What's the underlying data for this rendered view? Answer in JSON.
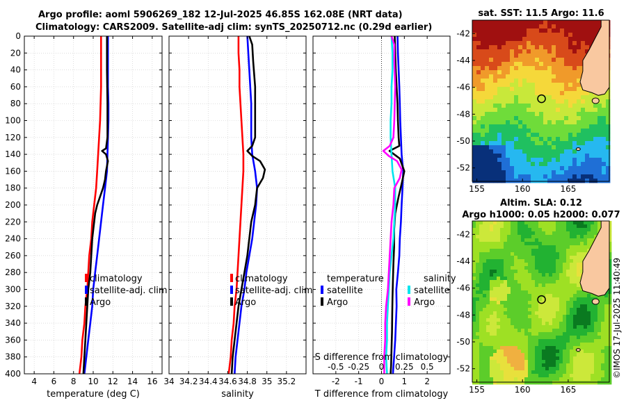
{
  "figure": {
    "title_line1": "Argo profile: aoml 5906269_182 12-Jul-2025 46.85S 162.08E (NRT data)",
    "title_line2": "Climatology: CARS2009. Satellite-adj clim: synTS_20250712.nc (0.29d earlier)",
    "credit": "©IMOS 17-Jul-2025 11:40:49"
  },
  "chart_data": [
    {
      "type": "line",
      "name": "temperature-profile",
      "xlabel": "temperature (deg C)",
      "ylabel": "",
      "xlim": [
        3,
        17
      ],
      "ylim": [
        400,
        0
      ],
      "xticks": [
        4,
        6,
        8,
        10,
        12,
        14,
        16
      ],
      "yticks": [
        0,
        20,
        40,
        60,
        80,
        100,
        120,
        140,
        160,
        180,
        200,
        220,
        240,
        260,
        280,
        300,
        320,
        340,
        360,
        380,
        400
      ],
      "grid": true,
      "legend": [
        "climatology",
        "satellite-adj. clim",
        "Argo"
      ],
      "series": [
        {
          "name": "climatology",
          "color": "#ff0000",
          "points": [
            [
              10.8,
              0
            ],
            [
              10.8,
              20
            ],
            [
              10.8,
              40
            ],
            [
              10.8,
              60
            ],
            [
              10.75,
              80
            ],
            [
              10.7,
              100
            ],
            [
              10.6,
              120
            ],
            [
              10.5,
              140
            ],
            [
              10.4,
              160
            ],
            [
              10.3,
              180
            ],
            [
              10.1,
              200
            ],
            [
              9.9,
              220
            ],
            [
              9.8,
              240
            ],
            [
              9.6,
              260
            ],
            [
              9.5,
              280
            ],
            [
              9.4,
              300
            ],
            [
              9.2,
              320
            ],
            [
              9.1,
              340
            ],
            [
              8.9,
              360
            ],
            [
              8.8,
              380
            ],
            [
              8.6,
              400
            ]
          ]
        },
        {
          "name": "satellite-adj. clim",
          "color": "#0000ff",
          "points": [
            [
              11.5,
              0
            ],
            [
              11.5,
              20
            ],
            [
              11.5,
              40
            ],
            [
              11.5,
              60
            ],
            [
              11.55,
              80
            ],
            [
              11.55,
              100
            ],
            [
              11.5,
              120
            ],
            [
              11.45,
              140
            ],
            [
              11.4,
              160
            ],
            [
              11.2,
              180
            ],
            [
              11.0,
              200
            ],
            [
              10.8,
              220
            ],
            [
              10.6,
              240
            ],
            [
              10.4,
              260
            ],
            [
              10.2,
              280
            ],
            [
              10.0,
              300
            ],
            [
              9.9,
              320
            ],
            [
              9.7,
              340
            ],
            [
              9.5,
              360
            ],
            [
              9.3,
              380
            ],
            [
              9.1,
              400
            ]
          ]
        },
        {
          "name": "Argo",
          "color": "#000000",
          "points": [
            [
              11.4,
              0
            ],
            [
              11.4,
              40
            ],
            [
              11.45,
              80
            ],
            [
              11.45,
              120
            ],
            [
              11.3,
              133
            ],
            [
              10.9,
              136
            ],
            [
              11.3,
              140
            ],
            [
              11.5,
              148
            ],
            [
              11.3,
              160
            ],
            [
              11.2,
              170
            ],
            [
              11.0,
              180
            ],
            [
              10.7,
              190
            ],
            [
              10.4,
              200
            ],
            [
              10.2,
              210
            ],
            [
              10.1,
              220
            ],
            [
              9.9,
              240
            ],
            [
              9.8,
              260
            ],
            [
              9.7,
              280
            ],
            [
              9.5,
              300
            ],
            [
              9.4,
              320
            ],
            [
              9.3,
              340
            ],
            [
              9.2,
              360
            ],
            [
              9.1,
              380
            ],
            [
              9.0,
              400
            ]
          ]
        }
      ]
    },
    {
      "type": "line",
      "name": "salinity-profile",
      "xlabel": "salinity",
      "xlim": [
        34,
        35.4
      ],
      "ylim": [
        400,
        0
      ],
      "xticks": [
        34,
        34.2,
        34.4,
        34.6,
        34.8,
        35,
        35.2
      ],
      "grid": true,
      "legend": [
        "climatology",
        "satellite-adj. clim",
        "Argo"
      ],
      "series": [
        {
          "name": "climatology",
          "color": "#ff0000",
          "points": [
            [
              34.71,
              0
            ],
            [
              34.71,
              20
            ],
            [
              34.72,
              40
            ],
            [
              34.72,
              60
            ],
            [
              34.73,
              80
            ],
            [
              34.74,
              100
            ],
            [
              34.75,
              120
            ],
            [
              34.76,
              140
            ],
            [
              34.76,
              160
            ],
            [
              34.75,
              180
            ],
            [
              34.74,
              200
            ],
            [
              34.73,
              220
            ],
            [
              34.72,
              240
            ],
            [
              34.71,
              260
            ],
            [
              34.7,
              280
            ],
            [
              34.69,
              300
            ],
            [
              34.67,
              320
            ],
            [
              34.66,
              340
            ],
            [
              34.64,
              360
            ],
            [
              34.63,
              380
            ],
            [
              34.61,
              400
            ]
          ]
        },
        {
          "name": "satellite-adj. clim",
          "color": "#0000ff",
          "points": [
            [
              34.8,
              0
            ],
            [
              34.81,
              20
            ],
            [
              34.82,
              40
            ],
            [
              34.83,
              60
            ],
            [
              34.84,
              80
            ],
            [
              34.84,
              100
            ],
            [
              34.84,
              120
            ],
            [
              34.85,
              140
            ],
            [
              34.88,
              160
            ],
            [
              34.9,
              180
            ],
            [
              34.89,
              200
            ],
            [
              34.87,
              220
            ],
            [
              34.85,
              240
            ],
            [
              34.82,
              260
            ],
            [
              34.79,
              280
            ],
            [
              34.77,
              300
            ],
            [
              34.74,
              320
            ],
            [
              34.72,
              340
            ],
            [
              34.7,
              360
            ],
            [
              34.68,
              380
            ],
            [
              34.67,
              400
            ]
          ]
        },
        {
          "name": "Argo",
          "color": "#000000",
          "points": [
            [
              34.82,
              0
            ],
            [
              34.85,
              10
            ],
            [
              34.86,
              30
            ],
            [
              34.88,
              60
            ],
            [
              34.88,
              100
            ],
            [
              34.88,
              120
            ],
            [
              34.85,
              130
            ],
            [
              34.8,
              136
            ],
            [
              34.85,
              142
            ],
            [
              34.93,
              148
            ],
            [
              34.98,
              158
            ],
            [
              34.96,
              168
            ],
            [
              34.9,
              180
            ],
            [
              34.88,
              200
            ],
            [
              34.84,
              220
            ],
            [
              34.82,
              240
            ],
            [
              34.8,
              260
            ],
            [
              34.77,
              280
            ],
            [
              34.74,
              300
            ],
            [
              34.71,
              320
            ],
            [
              34.69,
              340
            ],
            [
              34.67,
              360
            ],
            [
              34.65,
              380
            ],
            [
              34.64,
              400
            ]
          ]
        }
      ]
    },
    {
      "type": "line",
      "name": "difference-profile",
      "xlabel": "T difference from climatology",
      "top_axis_label": "S difference from climatology",
      "xlim": [
        -3,
        3
      ],
      "ylim": [
        400,
        0
      ],
      "xticks": [
        -2,
        -1,
        0,
        1,
        2
      ],
      "top_ticks": [
        -0.5,
        -0.25,
        0,
        0.25,
        0.5
      ],
      "top_tick_labels": [
        "-0.5",
        "-0.25",
        "0",
        "0.25",
        "0.5"
      ],
      "slim": [
        -0.75,
        0.75
      ],
      "grid": true,
      "legend_left_title": "temperature",
      "legend_right_title": "salinity",
      "legend": [
        "satellite",
        "Argo",
        "satellite",
        "Argo"
      ],
      "series": [
        {
          "name": "temperature satellite",
          "color": "#0000ff",
          "points": [
            [
              0.7,
              0
            ],
            [
              0.72,
              20
            ],
            [
              0.75,
              40
            ],
            [
              0.78,
              60
            ],
            [
              0.8,
              80
            ],
            [
              0.82,
              100
            ],
            [
              0.85,
              120
            ],
            [
              0.88,
              140
            ],
            [
              0.95,
              160
            ],
            [
              0.92,
              180
            ],
            [
              0.88,
              200
            ],
            [
              0.85,
              220
            ],
            [
              0.8,
              240
            ],
            [
              0.78,
              260
            ],
            [
              0.72,
              280
            ],
            [
              0.65,
              300
            ],
            [
              0.66,
              320
            ],
            [
              0.63,
              340
            ],
            [
              0.6,
              360
            ],
            [
              0.55,
              380
            ],
            [
              0.5,
              400
            ]
          ]
        },
        {
          "name": "temperature Argo",
          "color": "#000000",
          "points": [
            [
              0.58,
              0
            ],
            [
              0.6,
              20
            ],
            [
              0.62,
              40
            ],
            [
              0.66,
              60
            ],
            [
              0.7,
              80
            ],
            [
              0.72,
              100
            ],
            [
              0.75,
              120
            ],
            [
              0.78,
              130
            ],
            [
              0.35,
              136
            ],
            [
              0.8,
              145
            ],
            [
              1.0,
              160
            ],
            [
              0.88,
              175
            ],
            [
              0.75,
              190
            ],
            [
              0.6,
              210
            ],
            [
              0.55,
              230
            ],
            [
              0.55,
              250
            ],
            [
              0.52,
              270
            ],
            [
              0.5,
              290
            ],
            [
              0.48,
              310
            ],
            [
              0.47,
              330
            ],
            [
              0.46,
              350
            ],
            [
              0.44,
              370
            ],
            [
              0.42,
              390
            ],
            [
              0.4,
              400
            ]
          ]
        },
        {
          "name": "salinity satellite",
          "color": "#00e5ee",
          "points": [
            [
              0.11,
              0
            ],
            [
              0.12,
              20
            ],
            [
              0.12,
              40
            ],
            [
              0.11,
              60
            ],
            [
              0.11,
              80
            ],
            [
              0.1,
              100
            ],
            [
              0.1,
              120
            ],
            [
              0.11,
              140
            ],
            [
              0.12,
              160
            ],
            [
              0.15,
              180
            ],
            [
              0.15,
              200
            ],
            [
              0.14,
              220
            ],
            [
              0.13,
              240
            ],
            [
              0.11,
              260
            ],
            [
              0.09,
              280
            ],
            [
              0.08,
              300
            ],
            [
              0.07,
              320
            ],
            [
              0.06,
              340
            ],
            [
              0.06,
              360
            ],
            [
              0.05,
              380
            ],
            [
              0.06,
              400
            ]
          ]
        },
        {
          "name": "salinity Argo",
          "color": "#ff00ff",
          "points": [
            [
              0.11,
              0
            ],
            [
              0.14,
              10
            ],
            [
              0.14,
              30
            ],
            [
              0.15,
              60
            ],
            [
              0.14,
              100
            ],
            [
              0.13,
              120
            ],
            [
              0.09,
              130
            ],
            [
              0.02,
              136
            ],
            [
              0.08,
              142
            ],
            [
              0.17,
              148
            ],
            [
              0.22,
              158
            ],
            [
              0.2,
              168
            ],
            [
              0.14,
              180
            ],
            [
              0.13,
              200
            ],
            [
              0.11,
              220
            ],
            [
              0.1,
              240
            ],
            [
              0.09,
              260
            ],
            [
              0.08,
              280
            ],
            [
              0.07,
              300
            ],
            [
              0.05,
              320
            ],
            [
              0.04,
              340
            ],
            [
              0.04,
              360
            ],
            [
              0.03,
              380
            ],
            [
              0.03,
              400
            ]
          ]
        }
      ]
    },
    {
      "type": "heatmap",
      "name": "sst-map",
      "title": "sat. SST: 11.5 Argo: 11.6",
      "xlim": [
        154.5,
        169.5
      ],
      "ylim": [
        -53,
        -41
      ],
      "xticks": [
        155,
        160,
        165
      ],
      "yticks": [
        -42,
        -44,
        -46,
        -48,
        -50,
        -52
      ],
      "argo_position": [
        162.08,
        -46.85
      ],
      "colormap": [
        "#08307a",
        "#1f6fd6",
        "#26b8f0",
        "#20c060",
        "#6fdc3a",
        "#c8e83a",
        "#f5d83a",
        "#f09a2a",
        "#d84a1a",
        "#a01010"
      ]
    },
    {
      "type": "heatmap",
      "name": "sla-map",
      "title": "Altim. SLA: 0.12",
      "subtitle": "Argo h1000: 0.05 h2000: 0.077",
      "xlim": [
        154.5,
        169.5
      ],
      "ylim": [
        -53,
        -41
      ],
      "xticks": [
        155,
        160,
        165
      ],
      "yticks": [
        -42,
        -44,
        -46,
        -48,
        -50,
        -52
      ],
      "argo_position": [
        162.08,
        -46.85
      ],
      "colormap": [
        "#0a7a20",
        "#22b232",
        "#5ccd2a",
        "#9ee024",
        "#cce83a",
        "#e8e03c",
        "#f0b040",
        "#f08a40"
      ]
    }
  ]
}
